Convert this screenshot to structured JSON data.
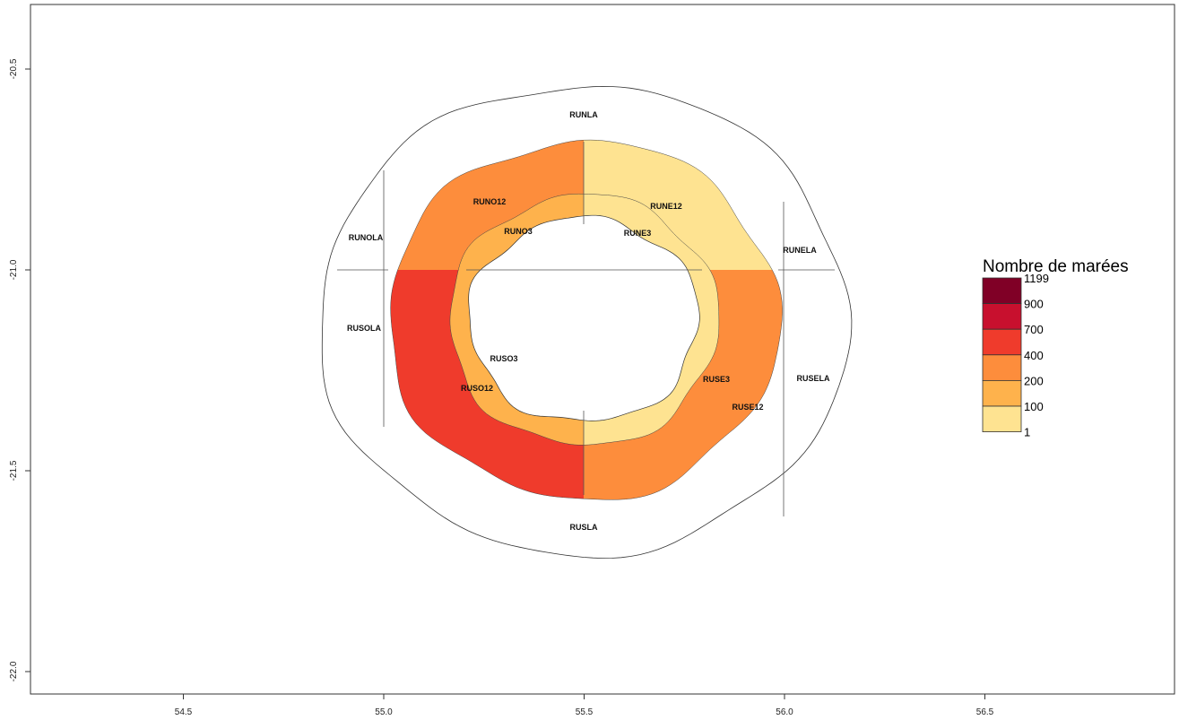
{
  "chart_data": {
    "type": "choropleth-map",
    "x_ticks": [
      "54.5",
      "55.0",
      "55.5",
      "56.0",
      "56.5"
    ],
    "y_ticks": [
      "-20.5",
      "-21.0",
      "-21.5",
      "-22.0"
    ],
    "xlim": [
      54.15,
      56.95
    ],
    "ylim": [
      -22.06,
      -20.33
    ],
    "legend": {
      "title": "Nombre de marées",
      "breaks": [
        "1199",
        "900",
        "700",
        "400",
        "200",
        "100",
        "1"
      ],
      "colors": [
        "#800026",
        "#c8102e",
        "#ef3b2c",
        "#fd8d3c",
        "#feb24c",
        "#fee391"
      ],
      "placement": "right"
    },
    "zones": [
      {
        "name": "RUNLA",
        "fill": "#ffffff"
      },
      {
        "name": "RUNOLA",
        "fill": "#ffffff"
      },
      {
        "name": "RUNELA",
        "fill": "#ffffff"
      },
      {
        "name": "RUSOLA",
        "fill": "#ffffff"
      },
      {
        "name": "RUSELA",
        "fill": "#ffffff"
      },
      {
        "name": "RUSLA",
        "fill": "#ffffff"
      },
      {
        "name": "RUNO12",
        "fill": "#fd8d3c"
      },
      {
        "name": "RUNE12",
        "fill": "#fee391"
      },
      {
        "name": "RUSO12",
        "fill": "#ef3b2c"
      },
      {
        "name": "RUSE12",
        "fill": "#fd8d3c"
      },
      {
        "name": "RUNO3",
        "fill": "#feb24c"
      },
      {
        "name": "RUNE3",
        "fill": "#fee391"
      },
      {
        "name": "RUSO3",
        "fill": "#feb24c"
      },
      {
        "name": "RUSE3",
        "fill": "#fee391"
      }
    ]
  }
}
